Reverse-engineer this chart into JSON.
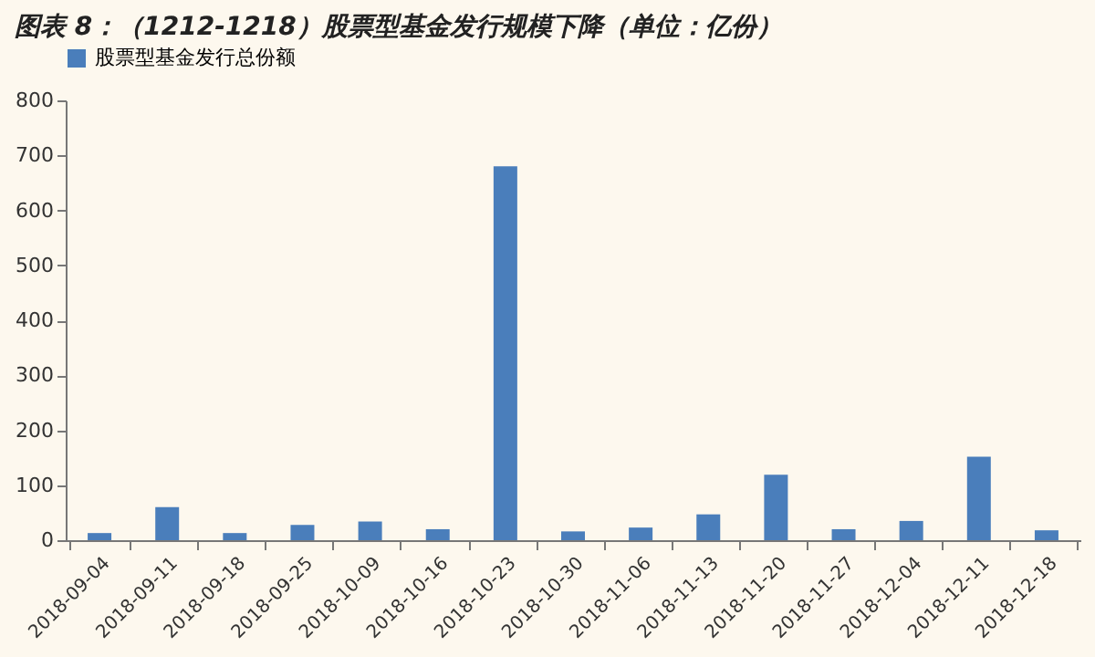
{
  "chart_data": {
    "type": "bar",
    "title": "图表 8：（1212-1218）股票型基金发行规模下降（单位：亿份）",
    "categories": [
      "2018-09-04",
      "2018-09-11",
      "2018-09-18",
      "2018-09-25",
      "2018-10-09",
      "2018-10-16",
      "2018-10-23",
      "2018-10-30",
      "2018-11-06",
      "2018-11-13",
      "2018-11-20",
      "2018-11-27",
      "2018-12-04",
      "2018-12-11",
      "2018-12-18"
    ],
    "series": [
      {
        "name": "股票型基金发行总份额",
        "color": "#4a7ebb",
        "values": [
          13,
          60,
          13,
          28,
          34,
          20,
          680,
          16,
          23,
          47,
          119,
          20,
          35,
          152,
          18
        ]
      }
    ],
    "ylim": [
      0,
      800
    ],
    "yticks": [
      0,
      100,
      200,
      300,
      400,
      500,
      600,
      700,
      800
    ],
    "grid": false,
    "legend": "top"
  }
}
